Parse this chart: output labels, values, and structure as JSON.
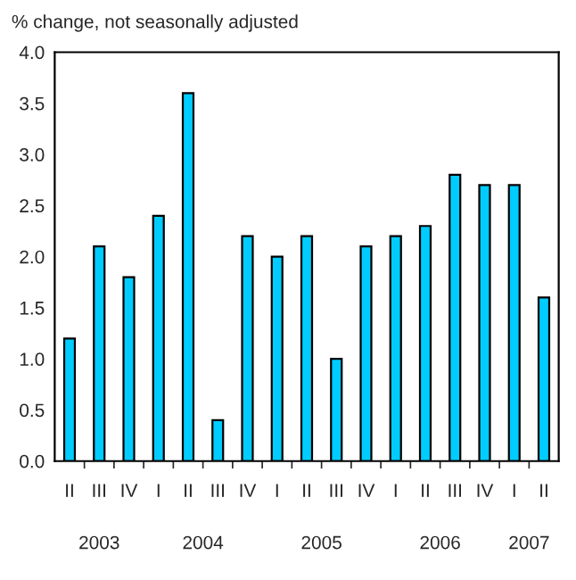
{
  "chart_data": {
    "type": "bar",
    "ylabel": "% change, not seasonally adjusted",
    "categories": [
      "II",
      "III",
      "IV",
      "I",
      "II",
      "III",
      "IV",
      "I",
      "II",
      "III",
      "IV",
      "I",
      "II",
      "III",
      "IV",
      "I",
      "II"
    ],
    "values": [
      1.2,
      2.1,
      1.8,
      2.4,
      3.6,
      0.4,
      2.2,
      2.0,
      2.2,
      1.0,
      2.1,
      2.2,
      2.3,
      2.8,
      2.7,
      2.7,
      1.6
    ],
    "color": "#00ccff",
    "ylim": [
      0,
      4
    ],
    "yticks": [
      {
        "value": 0,
        "label": "0.0"
      },
      {
        "value": 0.5,
        "label": "0.5"
      },
      {
        "value": 1,
        "label": "1.0"
      },
      {
        "value": 1.5,
        "label": "1.5"
      },
      {
        "value": 2,
        "label": "2.0"
      },
      {
        "value": 2.5,
        "label": "2.5"
      },
      {
        "value": 3,
        "label": "3.0"
      },
      {
        "value": 3.5,
        "label": "3.5"
      },
      {
        "value": 4,
        "label": "4.0"
      }
    ],
    "grid": false,
    "legend": false,
    "annotations": [
      "2003",
      "2004",
      "2005",
      "2006",
      "2007"
    ]
  }
}
